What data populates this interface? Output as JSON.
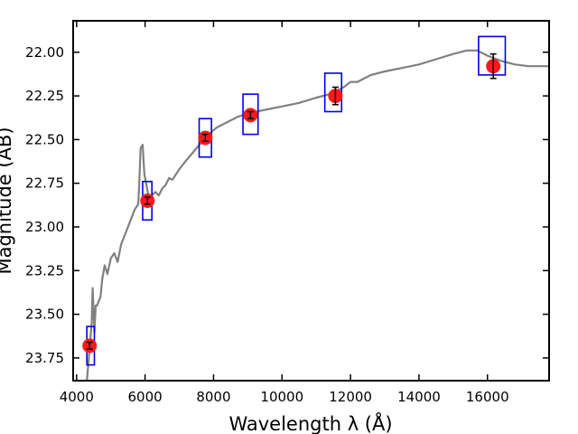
{
  "chart_data": {
    "type": "scatter",
    "title": "",
    "xlabel": "Wavelength  λ (Å)",
    "ylabel": "Magnitude (AB)",
    "xlim": [
      3900,
      17800
    ],
    "ylim": [
      23.88,
      21.82
    ],
    "y_inverted": true,
    "grid": false,
    "legend": "none",
    "x_ticks": [
      4000,
      6000,
      8000,
      10000,
      12000,
      14000,
      16000
    ],
    "y_ticks": [
      22.0,
      22.25,
      22.5,
      22.75,
      23.0,
      23.25,
      23.5,
      23.75
    ],
    "y_tick_labels": [
      "22.00",
      "22.25",
      "22.50",
      "22.75",
      "23.00",
      "23.25",
      "23.50",
      "23.75"
    ],
    "colors": {
      "points": "#ff1a1a",
      "boxes": "#0000ee",
      "sed": "#808080",
      "errorbars": "#000000"
    },
    "photometry": [
      {
        "x": 4380,
        "y": 23.68,
        "yerr": 0.02
      },
      {
        "x": 6070,
        "y": 22.85,
        "yerr": 0.02
      },
      {
        "x": 7760,
        "y": 22.49,
        "yerr": 0.02
      },
      {
        "x": 9080,
        "y": 22.36,
        "yerr": 0.02
      },
      {
        "x": 11560,
        "y": 22.25,
        "yerr": 0.05
      },
      {
        "x": 16170,
        "y": 22.08,
        "yerr": 0.07
      }
    ],
    "model_boxes": [
      {
        "x0": 4300,
        "x1": 4520,
        "y0": 23.57,
        "y1": 23.79
      },
      {
        "x0": 5930,
        "x1": 6200,
        "y0": 22.74,
        "y1": 22.96
      },
      {
        "x0": 7580,
        "x1": 7940,
        "y0": 22.38,
        "y1": 22.6
      },
      {
        "x0": 8860,
        "x1": 9300,
        "y0": 22.24,
        "y1": 22.47
      },
      {
        "x0": 11250,
        "x1": 11740,
        "y0": 22.12,
        "y1": 22.34
      },
      {
        "x0": 15740,
        "x1": 16520,
        "y0": 21.91,
        "y1": 22.13
      }
    ],
    "sed": {
      "x": [
        4300,
        4380,
        4440,
        4470,
        4520,
        4560,
        4600,
        4700,
        4750,
        4820,
        4900,
        5000,
        5100,
        5200,
        5300,
        5400,
        5500,
        5600,
        5700,
        5800,
        5820,
        5870,
        5930,
        5950,
        5980,
        6100,
        6200,
        6300,
        6400,
        6500,
        6600,
        6700,
        6800,
        7000,
        7200,
        7500,
        7800,
        8100,
        8400,
        8700,
        9000,
        9500,
        10000,
        10500,
        11000,
        11400,
        11800,
        12000,
        12200,
        12600,
        13000,
        13500,
        14000,
        14500,
        15000,
        15400,
        15700,
        16000,
        16400,
        16800,
        17200,
        17800
      ],
      "y": [
        23.88,
        23.7,
        23.55,
        23.35,
        23.6,
        23.45,
        23.45,
        23.4,
        23.3,
        23.22,
        23.27,
        23.18,
        23.15,
        23.2,
        23.1,
        23.05,
        23.0,
        22.95,
        22.9,
        22.87,
        22.8,
        22.55,
        22.53,
        22.6,
        22.7,
        22.82,
        22.82,
        22.8,
        22.82,
        22.78,
        22.76,
        22.72,
        22.73,
        22.67,
        22.62,
        22.55,
        22.48,
        22.43,
        22.4,
        22.37,
        22.35,
        22.33,
        22.31,
        22.29,
        22.26,
        22.24,
        22.2,
        22.17,
        22.17,
        22.13,
        22.11,
        22.09,
        22.07,
        22.04,
        22.01,
        21.99,
        21.99,
        22.02,
        22.05,
        22.07,
        22.08,
        22.08
      ]
    }
  }
}
